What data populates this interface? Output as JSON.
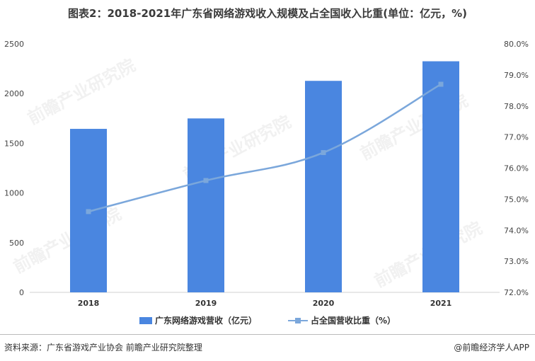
{
  "title": "图表2：2018-2021年广东省网络游戏收入规模及占全国收入比重(单位：亿元，%)",
  "watermark": "前瞻产业研究院",
  "footer": {
    "source": "资料来源：广东省游戏产业协会 前瞻产业研究院整理",
    "brand": "@前瞻经济学人APP"
  },
  "colors": {
    "bar": "#4a86e0",
    "line": "#7ba7db"
  },
  "chart_data": {
    "type": "bar",
    "categories": [
      "2018",
      "2019",
      "2020",
      "2021"
    ],
    "series": [
      {
        "name": "广东网络游戏营收（亿元）",
        "type": "bar",
        "axis": "left",
        "values": [
          1645,
          1750,
          2128,
          2325
        ]
      },
      {
        "name": "占全国营收比重（%）",
        "type": "line",
        "axis": "right",
        "values": [
          74.6,
          75.6,
          76.5,
          78.7
        ]
      }
    ],
    "y_left": {
      "ylim": [
        0,
        2500
      ],
      "ticks": [
        "0",
        "500",
        "1000",
        "1500",
        "2000",
        "2500"
      ]
    },
    "y_right": {
      "ylim": [
        72,
        80
      ],
      "ticks": [
        "72.0%",
        "73.0%",
        "74.0%",
        "75.0%",
        "76.0%",
        "77.0%",
        "78.0%",
        "79.0%",
        "80.0%"
      ]
    },
    "legend_position": "bottom",
    "grid": false
  }
}
